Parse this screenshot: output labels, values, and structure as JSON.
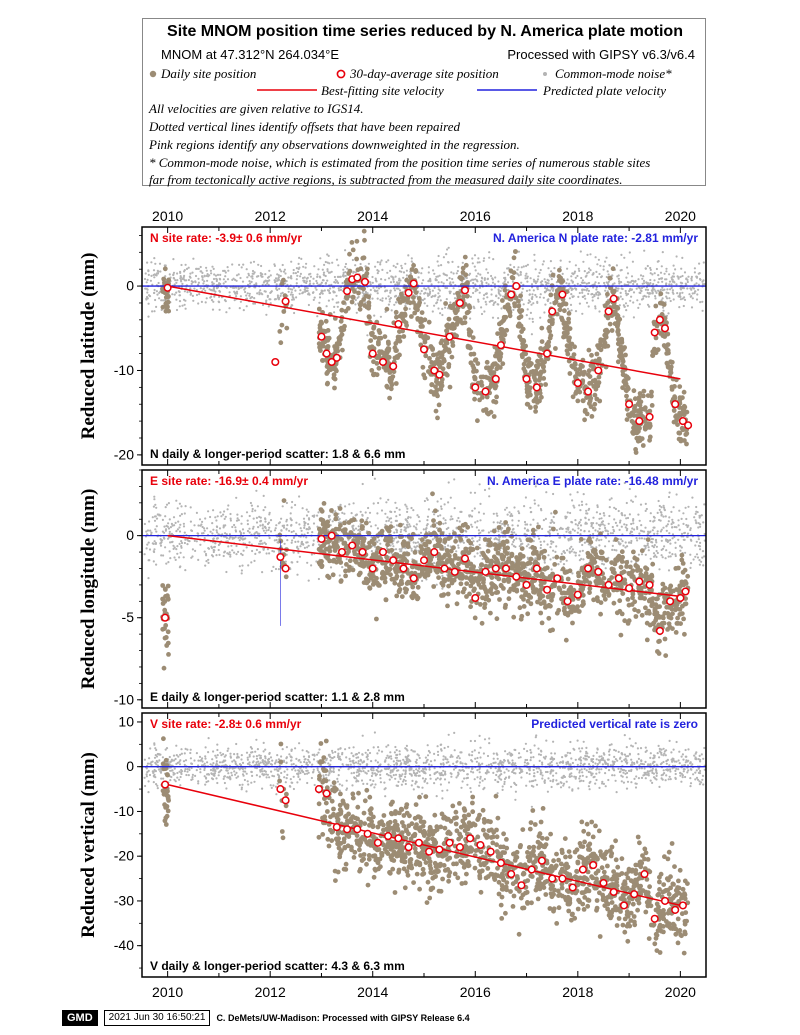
{
  "header": {
    "title": "Site MNOM position time series reduced by N. America plate motion",
    "location": "MNOM at 47.312°N 264.034°E",
    "processing": "Processed with GIPSY v6.3/v6.4",
    "legend": {
      "daily": "Daily site position",
      "avg": "30-day-average site position",
      "noise": "Common-mode noise*",
      "best_fit": "Best-fitting site velocity",
      "predicted": "Predicted plate velocity"
    },
    "notes": [
      "All velocities are given relative to IGS14.",
      "Dotted vertical lines identify offsets that have been repaired",
      "Pink regions identify any observations downweighted in the regression.",
      "* Common-mode noise, which is estimated from the position time series of numerous stable sites",
      "far from tectonically active regions, is subtracted from the measured daily site coordinates."
    ]
  },
  "colors": {
    "daily": "#9c8c74",
    "avg_edge": "#e8000b",
    "noise": "#b4b4b4",
    "best_fit": "#e8000b",
    "predicted": "#2222dd"
  },
  "chart_data": [
    {
      "type": "scatter",
      "component": "N",
      "ylabel": "Reduced latitude (mm)",
      "xlim": [
        2009.5,
        2020.5
      ],
      "ylim": [
        -21.2,
        7
      ],
      "yticks": [
        0,
        -10,
        -20
      ],
      "xticks": [
        2010,
        2012,
        2014,
        2016,
        2018,
        2020
      ],
      "rate_label": "N site rate:  -3.9± 0.6 mm/yr",
      "plate_label": "N. America N plate rate: -2.81 mm/yr",
      "scatter_label": "N daily & longer-period scatter:   1.8 &   6.6 mm",
      "best_fit": {
        "x": [
          2010.0,
          2020.0
        ],
        "y": [
          0,
          -11
        ]
      },
      "predicted_y": 0,
      "averages": [
        [
          2010.0,
          -0.2
        ],
        [
          2012.1,
          -9.0
        ],
        [
          2012.3,
          -1.8
        ],
        [
          2013.0,
          -6.0
        ],
        [
          2013.1,
          -8.0
        ],
        [
          2013.2,
          -9.0
        ],
        [
          2013.3,
          -8.5
        ],
        [
          2013.5,
          -0.6
        ],
        [
          2013.6,
          0.8
        ],
        [
          2013.7,
          1.0
        ],
        [
          2013.85,
          0.5
        ],
        [
          2014.0,
          -8.0
        ],
        [
          2014.2,
          -9.0
        ],
        [
          2014.4,
          -9.5
        ],
        [
          2014.5,
          -4.5
        ],
        [
          2014.7,
          -0.8
        ],
        [
          2014.8,
          0.3
        ],
        [
          2015.0,
          -7.5
        ],
        [
          2015.2,
          -10.0
        ],
        [
          2015.3,
          -10.5
        ],
        [
          2015.5,
          -6.0
        ],
        [
          2015.7,
          -2.0
        ],
        [
          2015.8,
          -0.5
        ],
        [
          2016.0,
          -12.0
        ],
        [
          2016.2,
          -12.5
        ],
        [
          2016.4,
          -11.0
        ],
        [
          2016.5,
          -7.0
        ],
        [
          2016.7,
          -1.0
        ],
        [
          2016.8,
          0.0
        ],
        [
          2017.0,
          -11.0
        ],
        [
          2017.2,
          -12.0
        ],
        [
          2017.4,
          -8.0
        ],
        [
          2017.5,
          -3.0
        ],
        [
          2017.7,
          -1.0
        ],
        [
          2018.0,
          -11.5
        ],
        [
          2018.2,
          -12.5
        ],
        [
          2018.4,
          -10.0
        ],
        [
          2018.6,
          -3.0
        ],
        [
          2018.7,
          -1.5
        ],
        [
          2019.0,
          -14.0
        ],
        [
          2019.2,
          -16.0
        ],
        [
          2019.4,
          -15.5
        ],
        [
          2019.5,
          -5.5
        ],
        [
          2019.6,
          -4.0
        ],
        [
          2019.7,
          -5.0
        ],
        [
          2019.9,
          -14.0
        ],
        [
          2020.05,
          -16.0
        ],
        [
          2020.15,
          -16.5
        ]
      ]
    },
    {
      "type": "scatter",
      "component": "E",
      "ylabel": "Reduced longitude (mm)",
      "xlim": [
        2009.5,
        2020.5
      ],
      "ylim": [
        -10.5,
        4
      ],
      "yticks": [
        0,
        -5,
        -10
      ],
      "xticks": [
        2010,
        2012,
        2014,
        2016,
        2018,
        2020
      ],
      "rate_label": "E site rate:  -16.9± 0.4 mm/yr",
      "plate_label": "N. America E plate rate: -16.48 mm/yr",
      "scatter_label": "E daily & longer-period scatter:   1.1 &   2.8 mm",
      "best_fit": {
        "x": [
          2010.0,
          2020.0
        ],
        "y": [
          0,
          -3.7
        ]
      },
      "predicted_y": 0,
      "averages": [
        [
          2009.95,
          -5.0
        ],
        [
          2012.2,
          -1.3
        ],
        [
          2012.3,
          -2.0
        ],
        [
          2013.0,
          -0.2
        ],
        [
          2013.2,
          0.0
        ],
        [
          2013.4,
          -1.0
        ],
        [
          2013.6,
          -0.6
        ],
        [
          2013.8,
          -1.0
        ],
        [
          2014.0,
          -2.0
        ],
        [
          2014.2,
          -1.0
        ],
        [
          2014.4,
          -1.5
        ],
        [
          2014.6,
          -2.0
        ],
        [
          2014.8,
          -2.6
        ],
        [
          2015.0,
          -1.5
        ],
        [
          2015.2,
          -1.0
        ],
        [
          2015.4,
          -2.0
        ],
        [
          2015.6,
          -2.2
        ],
        [
          2015.8,
          -1.4
        ],
        [
          2016.0,
          -3.8
        ],
        [
          2016.2,
          -2.2
        ],
        [
          2016.4,
          -2.0
        ],
        [
          2016.6,
          -2.0
        ],
        [
          2016.8,
          -2.5
        ],
        [
          2017.0,
          -3.0
        ],
        [
          2017.2,
          -2.0
        ],
        [
          2017.4,
          -3.3
        ],
        [
          2017.6,
          -2.6
        ],
        [
          2017.8,
          -4.0
        ],
        [
          2018.0,
          -3.6
        ],
        [
          2018.2,
          -2.0
        ],
        [
          2018.4,
          -2.2
        ],
        [
          2018.6,
          -3.0
        ],
        [
          2018.8,
          -2.6
        ],
        [
          2019.0,
          -3.2
        ],
        [
          2019.2,
          -2.8
        ],
        [
          2019.4,
          -3.0
        ],
        [
          2019.6,
          -5.8
        ],
        [
          2019.8,
          -4.0
        ],
        [
          2020.0,
          -3.8
        ],
        [
          2020.1,
          -3.4
        ]
      ]
    },
    {
      "type": "scatter",
      "component": "V",
      "ylabel": "Reduced vertical (mm)",
      "xlim": [
        2009.5,
        2020.5
      ],
      "ylim": [
        -47,
        12
      ],
      "yticks": [
        10,
        0,
        -10,
        -20,
        -30,
        -40
      ],
      "xticks": [
        2010,
        2012,
        2014,
        2016,
        2018,
        2020
      ],
      "rate_label": "V site rate:  -2.8± 0.6 mm/yr",
      "plate_label": "Predicted vertical rate is zero",
      "scatter_label": "V daily & longer-period scatter:   4.3 &   6.3 mm",
      "best_fit": {
        "x": [
          2010.0,
          2020.0
        ],
        "y": [
          -4,
          -31
        ]
      },
      "predicted_y": 0,
      "averages": [
        [
          2009.95,
          -4.0
        ],
        [
          2012.2,
          -5.0
        ],
        [
          2012.3,
          -7.5
        ],
        [
          2012.95,
          -5.0
        ],
        [
          2013.1,
          -6.0
        ],
        [
          2013.3,
          -13.5
        ],
        [
          2013.5,
          -14.0
        ],
        [
          2013.7,
          -14.0
        ],
        [
          2013.9,
          -15.0
        ],
        [
          2014.1,
          -17.0
        ],
        [
          2014.3,
          -15.5
        ],
        [
          2014.5,
          -16.0
        ],
        [
          2014.7,
          -18.0
        ],
        [
          2014.9,
          -17.0
        ],
        [
          2015.1,
          -19.0
        ],
        [
          2015.3,
          -18.5
        ],
        [
          2015.5,
          -17.0
        ],
        [
          2015.7,
          -18.0
        ],
        [
          2015.9,
          -16.0
        ],
        [
          2016.1,
          -17.5
        ],
        [
          2016.3,
          -19.0
        ],
        [
          2016.5,
          -21.5
        ],
        [
          2016.7,
          -24.0
        ],
        [
          2016.9,
          -26.5
        ],
        [
          2017.1,
          -23.0
        ],
        [
          2017.3,
          -21.0
        ],
        [
          2017.5,
          -25.0
        ],
        [
          2017.7,
          -25.0
        ],
        [
          2017.9,
          -27.0
        ],
        [
          2018.1,
          -23.0
        ],
        [
          2018.3,
          -22.0
        ],
        [
          2018.5,
          -26.0
        ],
        [
          2018.7,
          -28.0
        ],
        [
          2018.9,
          -31.0
        ],
        [
          2019.1,
          -28.5
        ],
        [
          2019.3,
          -24.0
        ],
        [
          2019.5,
          -34.0
        ],
        [
          2019.7,
          -30.0
        ],
        [
          2019.9,
          -32.0
        ],
        [
          2020.05,
          -31.0
        ]
      ]
    }
  ],
  "footer": {
    "logo": "GMD",
    "date": "2021 Jun 30 16:50:21",
    "credit": "C. DeMets/UW-Madison: Processed with GIPSY Release 6.4"
  }
}
